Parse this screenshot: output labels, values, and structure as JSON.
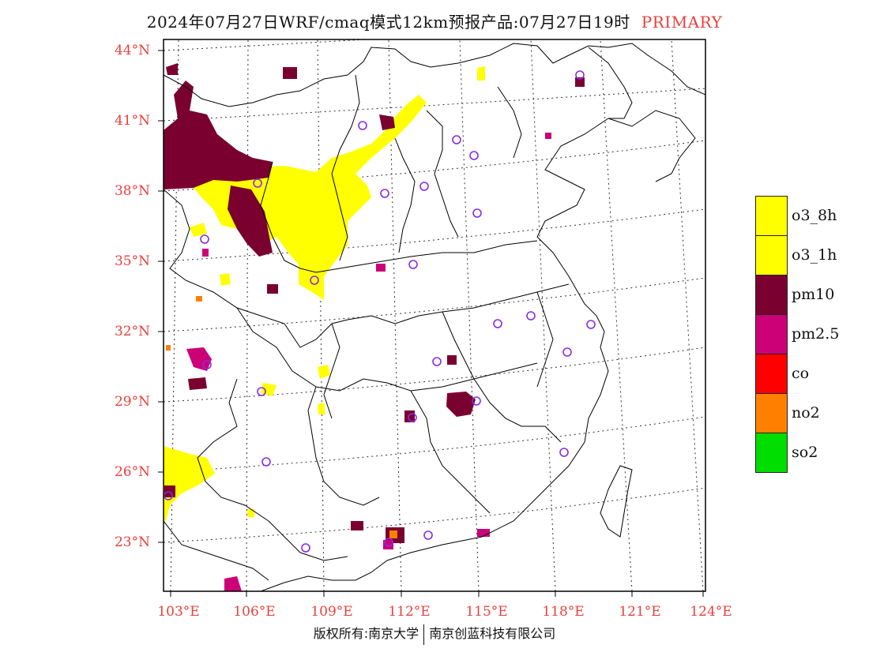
{
  "title": {
    "main": "2024年07月27日WRF/cmaq模式12km预报产品:07月27日19时",
    "tag": "PRIMARY"
  },
  "axes": {
    "lat_labels": [
      "44°N",
      "41°N",
      "38°N",
      "35°N",
      "32°N",
      "29°N",
      "26°N",
      "23°N"
    ],
    "lon_labels": [
      "103°E",
      "106°E",
      "109°E",
      "112°E",
      "115°E",
      "118°E",
      "121°E",
      "124°E"
    ]
  },
  "legend": [
    {
      "label": "o3_8h",
      "color": "#ffff00"
    },
    {
      "label": "o3_1h",
      "color": "#ffff00"
    },
    {
      "label": "pm10",
      "color": "#7a0030"
    },
    {
      "label": "pm2.5",
      "color": "#cc0077"
    },
    {
      "label": "co",
      "color": "#ff0000"
    },
    {
      "label": "no2",
      "color": "#ff8000"
    },
    {
      "label": "so2",
      "color": "#00dd00"
    }
  ],
  "copyright": {
    "left": "版权所有:南京大学",
    "right": "南京创蓝科技有限公司"
  },
  "map": {
    "boundary_color": "#000000",
    "grid_color": "#333333",
    "station_color": "#8a2be2",
    "station_count": 27
  }
}
